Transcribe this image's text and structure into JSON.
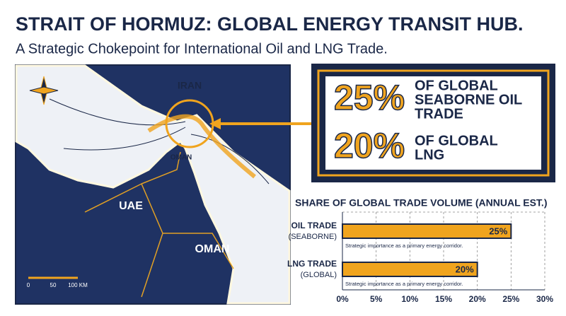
{
  "header": {
    "title": "STRAIT OF HORMUZ: GLOBAL ENERGY TRANSIT HUB.",
    "subtitle": "A Strategic Chokepoint for International Oil and LNG Trade."
  },
  "map": {
    "labels": [
      "IRAN",
      "OMAN",
      "UAE",
      "OMAN"
    ],
    "scale_labels": [
      "0",
      "50",
      "100 KM"
    ]
  },
  "callout": {
    "stats": [
      {
        "stat": "25%",
        "lines": [
          "OF GLOBAL",
          "SEABORNE OIL",
          "TRADE"
        ]
      },
      {
        "stat": "20%",
        "lines": [
          "OF GLOBAL",
          "LNG"
        ]
      }
    ]
  },
  "chart_data": {
    "type": "bar",
    "orientation": "horizontal",
    "title": "SHARE OF GLOBAL TRADE VOLUME (ANNUAL EST.)",
    "categories": [
      "OIL TRADE",
      "LNG TRADE"
    ],
    "category_sublabels": [
      "(SEABORNE)",
      "(GLOBAL)"
    ],
    "values": [
      25,
      20
    ],
    "value_labels": [
      "25%",
      "20%"
    ],
    "annotations": [
      "Strategic importance as a primary energy corridor.",
      "Strategic importance as a primary energy corridor."
    ],
    "color": "#f0a41e",
    "xlim": [
      0,
      30
    ],
    "xticks": [
      {
        "value": 0,
        "label": "0%"
      },
      {
        "value": 5,
        "label": "5%"
      },
      {
        "value": 10,
        "label": "10%"
      },
      {
        "value": 15,
        "label": "15%"
      },
      {
        "value": 20,
        "label": "20%"
      },
      {
        "value": 25,
        "label": "25%"
      },
      {
        "value": 30,
        "label": "30%"
      }
    ],
    "grid": true
  }
}
